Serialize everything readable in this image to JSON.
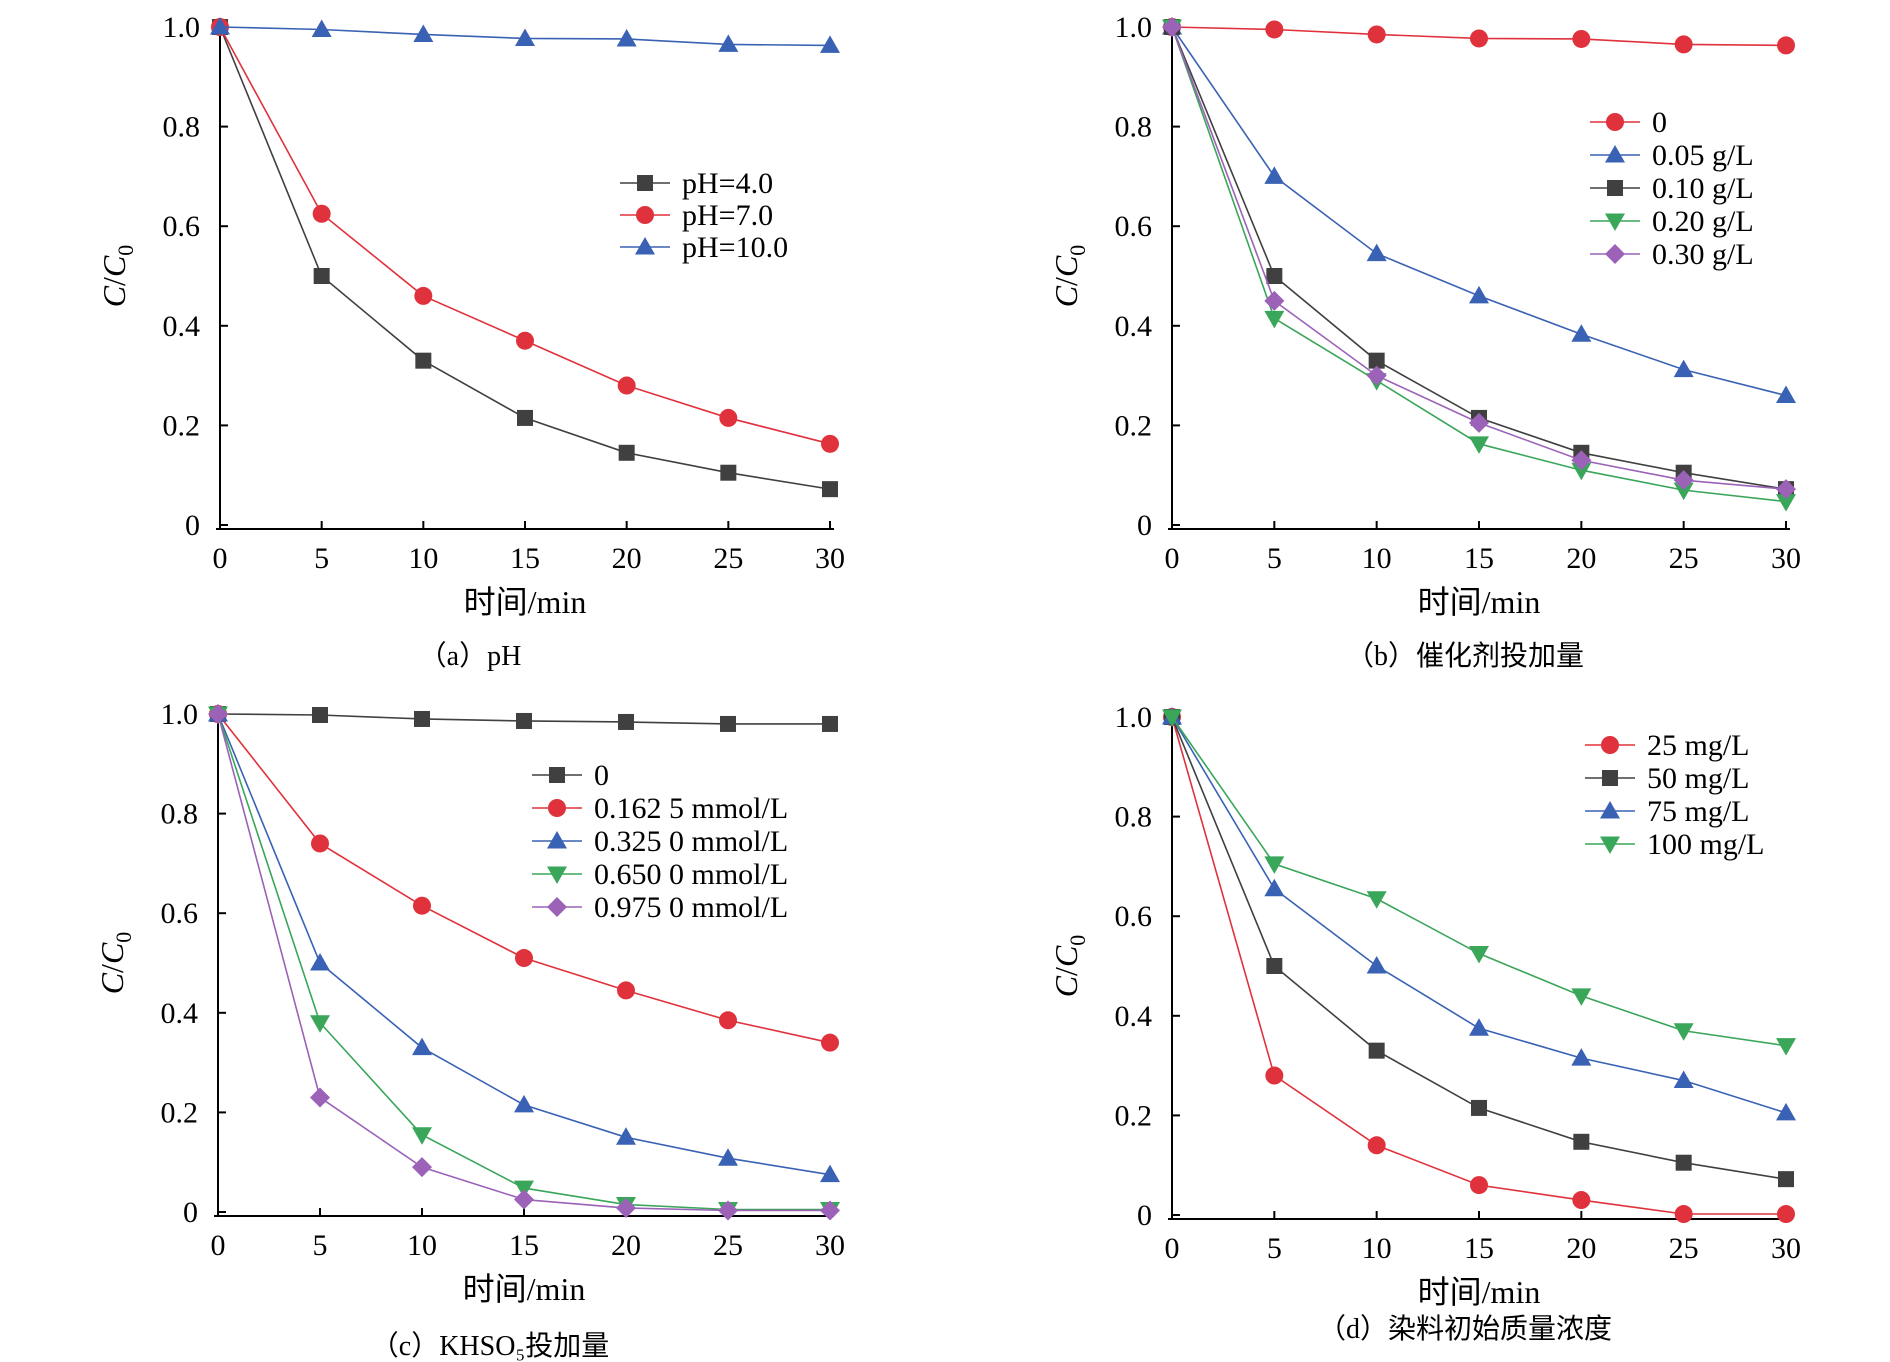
{
  "chart_data": [
    {
      "type": "line",
      "caption": "（a）pH",
      "xlabel": "时间/min",
      "ylabel": "C/C0",
      "xlim": [
        0,
        30
      ],
      "ylim": [
        0,
        1.0
      ],
      "xticks": [
        "0",
        "5",
        "10",
        "15",
        "20",
        "25",
        "30"
      ],
      "yticks": [
        "0",
        "0.2",
        "0.4",
        "0.6",
        "0.8",
        "1.0"
      ],
      "legend_position": "center-right",
      "x": [
        0,
        5,
        10,
        15,
        20,
        25,
        30
      ],
      "series": [
        {
          "name": "pH=4.0",
          "color": "#404040",
          "marker": "square",
          "values": [
            1.0,
            0.5,
            0.33,
            0.215,
            0.145,
            0.105,
            0.072
          ]
        },
        {
          "name": "pH=7.0",
          "color": "#e0323c",
          "marker": "circle",
          "values": [
            1.0,
            0.625,
            0.46,
            0.37,
            0.28,
            0.215,
            0.163
          ]
        },
        {
          "name": "pH=10.0",
          "color": "#3a62b4",
          "marker": "triangle-up",
          "values": [
            1.0,
            0.995,
            0.985,
            0.977,
            0.976,
            0.965,
            0.963
          ]
        }
      ]
    },
    {
      "type": "line",
      "caption": "（b）催化剂投加量",
      "xlabel": "时间/min",
      "ylabel": "C/C0",
      "xlim": [
        0,
        30
      ],
      "ylim": [
        0,
        1.0
      ],
      "xticks": [
        "0",
        "5",
        "10",
        "15",
        "20",
        "25",
        "30"
      ],
      "yticks": [
        "0",
        "0.2",
        "0.4",
        "0.6",
        "0.8",
        "1.0"
      ],
      "legend_position": "top-right",
      "x": [
        0,
        5,
        10,
        15,
        20,
        25,
        30
      ],
      "series": [
        {
          "name": "0",
          "color": "#e0323c",
          "marker": "circle",
          "values": [
            1.0,
            0.995,
            0.985,
            0.977,
            0.976,
            0.965,
            0.963
          ]
        },
        {
          "name": "0.05 g/L",
          "color": "#3a62b4",
          "marker": "triangle-up",
          "values": [
            1.0,
            0.7,
            0.545,
            0.46,
            0.383,
            0.312,
            0.26
          ]
        },
        {
          "name": "0.10 g/L",
          "color": "#404040",
          "marker": "square",
          "values": [
            1.0,
            0.5,
            0.33,
            0.215,
            0.145,
            0.105,
            0.072
          ]
        },
        {
          "name": "0.20 g/L",
          "color": "#3aa65a",
          "marker": "triangle-down",
          "values": [
            1.0,
            0.415,
            0.29,
            0.163,
            0.11,
            0.07,
            0.047
          ]
        },
        {
          "name": "0.30 g/L",
          "color": "#9b62b8",
          "marker": "diamond",
          "values": [
            1.0,
            0.45,
            0.3,
            0.205,
            0.13,
            0.09,
            0.072
          ]
        }
      ]
    },
    {
      "type": "line",
      "caption": "（c）KHSO₅投加量",
      "xlabel": "时间/min",
      "ylabel": "C/C0",
      "xlim": [
        0,
        30
      ],
      "ylim": [
        0,
        1.0
      ],
      "xticks": [
        "0",
        "5",
        "10",
        "15",
        "20",
        "25",
        "30"
      ],
      "yticks": [
        "0",
        "0.2",
        "0.4",
        "0.6",
        "0.8",
        "1.0"
      ],
      "legend_position": "top-right",
      "x": [
        0,
        5,
        10,
        15,
        20,
        25,
        30
      ],
      "series": [
        {
          "name": "0",
          "color": "#404040",
          "marker": "square",
          "values": [
            1.0,
            0.998,
            0.99,
            0.986,
            0.984,
            0.98,
            0.98
          ]
        },
        {
          "name": "0.162 5 mmol/L",
          "color": "#e0323c",
          "marker": "circle",
          "values": [
            1.0,
            0.74,
            0.615,
            0.51,
            0.445,
            0.385,
            0.34
          ]
        },
        {
          "name": "0.325 0 mmol/L",
          "color": "#3a62b4",
          "marker": "triangle-up",
          "values": [
            1.0,
            0.5,
            0.33,
            0.215,
            0.15,
            0.108,
            0.075
          ]
        },
        {
          "name": "0.650 0 mmol/L",
          "color": "#3aa65a",
          "marker": "triangle-down",
          "values": [
            1.0,
            0.38,
            0.155,
            0.048,
            0.015,
            0.005,
            0.005
          ]
        },
        {
          "name": "0.975 0  mmol/L",
          "color": "#9b62b8",
          "marker": "diamond",
          "values": [
            1.0,
            0.23,
            0.09,
            0.025,
            0.008,
            0.003,
            0.003
          ]
        }
      ]
    },
    {
      "type": "line",
      "caption": "（d）染料初始质量浓度",
      "xlabel": "时间/min",
      "ylabel": "C/C0",
      "xlim": [
        0,
        30
      ],
      "ylim": [
        0,
        1.0
      ],
      "xticks": [
        "0",
        "5",
        "10",
        "15",
        "20",
        "25",
        "30"
      ],
      "yticks": [
        "0",
        "0.2",
        "0.4",
        "0.6",
        "0.8",
        "1.0"
      ],
      "legend_position": "top-right",
      "x": [
        0,
        5,
        10,
        15,
        20,
        25,
        30
      ],
      "series": [
        {
          "name": "25 mg/L",
          "color": "#e0323c",
          "marker": "circle",
          "values": [
            1.0,
            0.28,
            0.14,
            0.06,
            0.03,
            0.002,
            0.002
          ]
        },
        {
          "name": "50 mg/L",
          "color": "#404040",
          "marker": "square",
          "values": [
            1.0,
            0.5,
            0.33,
            0.215,
            0.147,
            0.105,
            0.072
          ]
        },
        {
          "name": "75 mg/L",
          "color": "#3a62b4",
          "marker": "triangle-up",
          "values": [
            1.0,
            0.655,
            0.5,
            0.375,
            0.315,
            0.27,
            0.205
          ]
        },
        {
          "name": "100 mg/L",
          "color": "#3aa65a",
          "marker": "triangle-down",
          "values": [
            1.0,
            0.705,
            0.635,
            0.525,
            0.44,
            0.37,
            0.34
          ]
        }
      ]
    }
  ]
}
